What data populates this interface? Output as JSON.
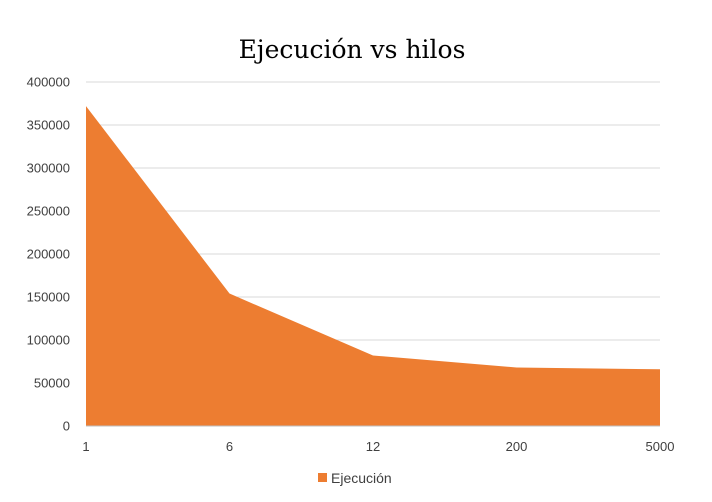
{
  "chart_data": {
    "type": "area",
    "title": "Ejecución vs hilos",
    "categories": [
      "1",
      "6",
      "12",
      "200",
      "5000"
    ],
    "series": [
      {
        "name": "Ejecución",
        "values": [
          372000,
          154000,
          82000,
          68000,
          66000
        ],
        "color": "#ED7D31"
      }
    ],
    "ylim": [
      0,
      400000
    ],
    "yticks": [
      0,
      50000,
      100000,
      150000,
      200000,
      250000,
      300000,
      350000,
      400000
    ],
    "ytick_labels": [
      "0",
      "50000",
      "100000",
      "150000",
      "200000",
      "250000",
      "300000",
      "350000",
      "400000"
    ],
    "grid": "horizontal",
    "legend_position": "bottom"
  }
}
